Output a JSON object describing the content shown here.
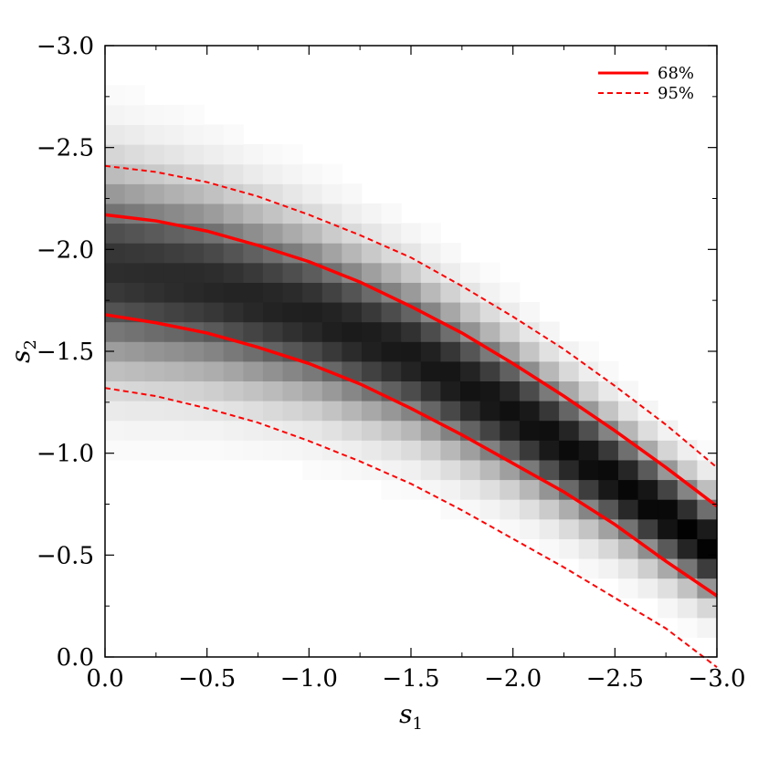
{
  "chart_data": {
    "type": "heatmap",
    "xlabel": "s",
    "xlabel_subscript": "1",
    "ylabel": "s",
    "ylabel_subscript": "2",
    "xlim": [
      0.0,
      -3.0
    ],
    "ylim": [
      0.0,
      -3.0
    ],
    "x_ticks": [
      {
        "value": 0.0,
        "label": "0.0"
      },
      {
        "value": -0.5,
        "label": "−0.5"
      },
      {
        "value": -1.0,
        "label": "−1.0"
      },
      {
        "value": -1.5,
        "label": "−1.5"
      },
      {
        "value": -2.0,
        "label": "−2.0"
      },
      {
        "value": -2.5,
        "label": "−2.5"
      },
      {
        "value": -3.0,
        "label": "−3.0"
      }
    ],
    "y_ticks": [
      {
        "value": 0.0,
        "label": "0.0"
      },
      {
        "value": -0.5,
        "label": "−0.5"
      },
      {
        "value": -1.0,
        "label": "−1.0"
      },
      {
        "value": -1.5,
        "label": "−1.5"
      },
      {
        "value": -2.0,
        "label": "−2.0"
      },
      {
        "value": -2.5,
        "label": "−2.5"
      },
      {
        "value": -3.0,
        "label": "−3.0"
      }
    ],
    "minor_tick_step": 0.25,
    "grid": false,
    "legend_position": "top-right",
    "heatmap": {
      "colormap": "greys",
      "bins_x": 31,
      "bins_y": 31,
      "description_of_density": "probability density peaks along a band from s2≈-1.9 at s1=0 down to s2≈-0.5 at s1=-3",
      "ridge": {
        "s1": [
          0.0,
          -0.5,
          -1.0,
          -1.5,
          -2.0,
          -2.5,
          -3.0
        ],
        "s2": [
          -1.9,
          -1.82,
          -1.68,
          -1.48,
          -1.2,
          -0.87,
          -0.52
        ]
      }
    },
    "series": [
      {
        "name": "68%",
        "style": "solid",
        "color": "#ff0000",
        "curves": [
          {
            "x": [
              0.0,
              -0.25,
              -0.5,
              -0.75,
              -1.0,
              -1.25,
              -1.5,
              -1.75,
              -2.0,
              -2.25,
              -2.5,
              -2.75,
              -3.0
            ],
            "y": [
              -2.17,
              -2.14,
              -2.09,
              -2.02,
              -1.94,
              -1.84,
              -1.72,
              -1.59,
              -1.44,
              -1.28,
              -1.11,
              -0.93,
              -0.74
            ]
          },
          {
            "x": [
              0.0,
              -0.25,
              -0.5,
              -0.75,
              -1.0,
              -1.25,
              -1.5,
              -1.75,
              -2.0,
              -2.25,
              -2.5,
              -2.75,
              -3.0
            ],
            "y": [
              -1.68,
              -1.64,
              -1.59,
              -1.52,
              -1.44,
              -1.34,
              -1.22,
              -1.09,
              -0.95,
              -0.81,
              -0.65,
              -0.47,
              -0.3
            ]
          }
        ]
      },
      {
        "name": "95%",
        "style": "dashed",
        "color": "#ff0000",
        "curves": [
          {
            "x": [
              0.0,
              -0.25,
              -0.5,
              -0.75,
              -1.0,
              -1.25,
              -1.5,
              -1.75,
              -2.0,
              -2.25,
              -2.5,
              -2.75,
              -3.0
            ],
            "y": [
              -2.41,
              -2.38,
              -2.33,
              -2.26,
              -2.17,
              -2.07,
              -1.96,
              -1.82,
              -1.67,
              -1.51,
              -1.33,
              -1.14,
              -0.93
            ]
          },
          {
            "x": [
              0.0,
              -0.25,
              -0.5,
              -0.75,
              -1.0,
              -1.25,
              -1.5,
              -1.75,
              -2.0,
              -2.25,
              -2.5,
              -2.75,
              -3.0
            ],
            "y": [
              -1.32,
              -1.28,
              -1.22,
              -1.15,
              -1.06,
              -0.96,
              -0.85,
              -0.72,
              -0.58,
              -0.44,
              -0.29,
              -0.14,
              0.05
            ]
          }
        ]
      }
    ]
  }
}
